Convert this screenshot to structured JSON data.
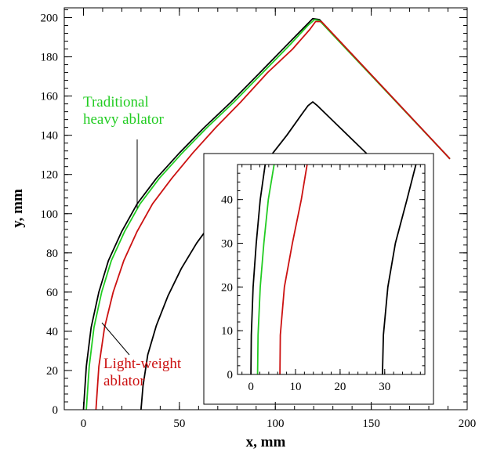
{
  "chart_data": [
    {
      "type": "line",
      "xlabel": "x, mm",
      "ylabel": "y, mm",
      "xlim": [
        -10,
        200
      ],
      "ylim": [
        0,
        205
      ],
      "xticks": [
        "0",
        "50",
        "100",
        "150",
        "200"
      ],
      "yticks": [
        "0",
        "20",
        "40",
        "60",
        "80",
        "100",
        "120",
        "140",
        "160",
        "180",
        "200"
      ],
      "colors": {
        "outer_surface": "#000000",
        "heavy": "#22cc22",
        "light": "#cc1111",
        "inner_surface": "#000000"
      },
      "series": [
        {
          "key": "outer_surface",
          "x": [
            0,
            1.5,
            4,
            8,
            13,
            20,
            28,
            38,
            50,
            63,
            77,
            92,
            106,
            116,
            119.5,
            123,
            191
          ],
          "y": [
            0,
            22,
            42,
            60,
            76,
            91,
            105,
            118,
            131,
            144,
            157,
            172,
            186,
            196,
            199.5,
            199,
            128
          ]
        },
        {
          "key": "heavy",
          "x": [
            1.5,
            3,
            5.5,
            9.5,
            14.5,
            21.5,
            29.5,
            39.5,
            51.5,
            64.5,
            78.5,
            93.5,
            107.5,
            117,
            120.5,
            123,
            191
          ],
          "y": [
            0,
            22,
            42,
            60,
            76,
            91,
            105,
            118,
            131,
            144,
            157,
            172,
            186,
            196,
            199,
            198.5,
            128
          ]
        },
        {
          "key": "light",
          "x": [
            6.5,
            8,
            11,
            15.5,
            21,
            28,
            36,
            46,
            57,
            69,
            82,
            96,
            109,
            118,
            121,
            124,
            191
          ],
          "y": [
            0,
            22,
            42,
            60,
            76,
            91,
            105,
            118,
            131,
            144,
            157,
            172,
            184,
            194,
            198,
            198,
            128
          ]
        },
        {
          "key": "inner_surface",
          "x": [
            30,
            31,
            33.5,
            38,
            44,
            51,
            59,
            68,
            78,
            88,
            98,
            106,
            114,
            117,
            119.5,
            122,
            182
          ],
          "y": [
            0,
            12,
            28,
            43,
            58,
            72,
            85,
            97,
            108,
            119,
            130,
            140,
            151,
            155,
            157,
            155,
            98
          ]
        }
      ],
      "annotations": [
        {
          "lines": [
            "Traditional",
            "heavy ablator"
          ],
          "color": "#22cc22",
          "series": "heavy"
        },
        {
          "lines": [
            "Light-weight",
            "ablator"
          ],
          "color": "#cc1111",
          "series": "light"
        }
      ]
    },
    {
      "type": "line",
      "inset": true,
      "xlim": [
        -3,
        39
      ],
      "ylim": [
        0,
        48
      ],
      "xticks": [
        "0",
        "10",
        "20",
        "30"
      ],
      "yticks": [
        "0",
        "10",
        "20",
        "30",
        "40"
      ],
      "series": [
        {
          "key": "outer_surface",
          "x": [
            0,
            0.1,
            0.5,
            1.2,
            2.1,
            3.2
          ],
          "y": [
            0,
            9,
            20,
            30,
            40,
            48
          ]
        },
        {
          "key": "heavy",
          "x": [
            1.5,
            1.6,
            2.1,
            2.9,
            3.9,
            5.2
          ],
          "y": [
            0,
            9,
            20,
            30,
            40,
            48
          ]
        },
        {
          "key": "light",
          "x": [
            6.5,
            6.6,
            7.5,
            9.3,
            11.3,
            12.6
          ],
          "y": [
            0,
            9,
            20,
            30,
            40,
            48
          ]
        },
        {
          "key": "inner_surface",
          "x": [
            29.5,
            29.7,
            30.7,
            32.4,
            35,
            37
          ],
          "y": [
            0,
            9,
            20,
            30,
            40,
            48
          ]
        }
      ]
    }
  ]
}
